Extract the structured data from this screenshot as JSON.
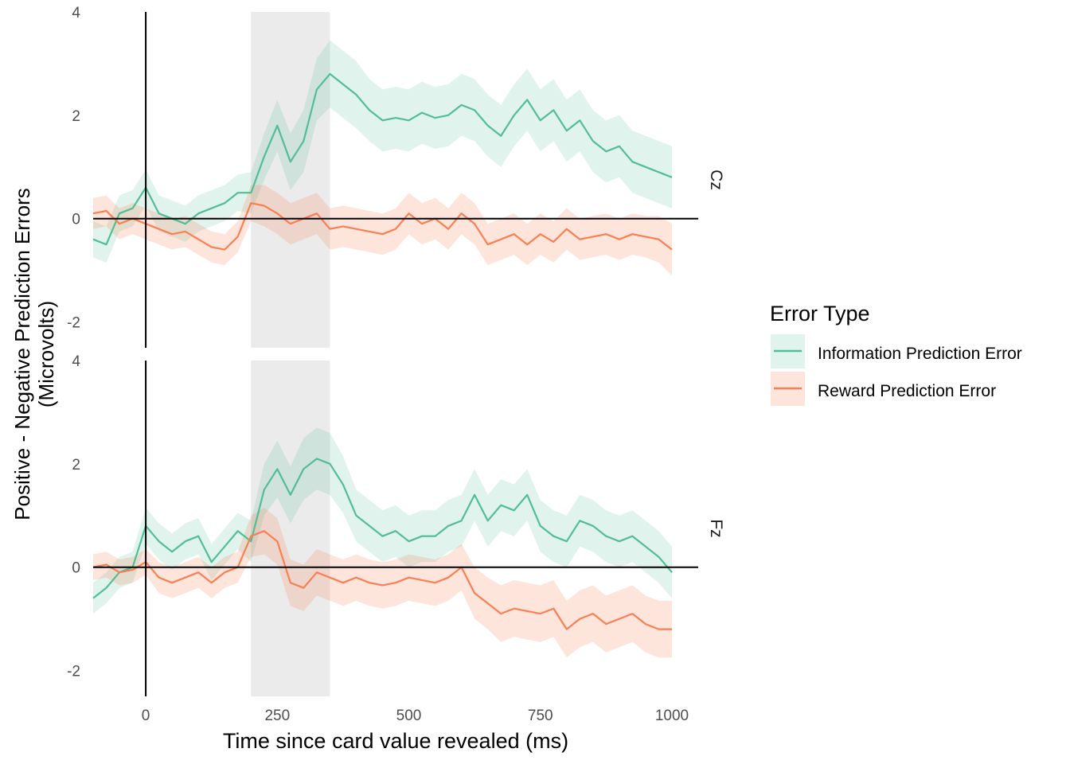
{
  "chart_data": {
    "type": "line",
    "ylabel_line1": "Positive - Negative Prediction Errors",
    "ylabel_line2": "(Microvolts)",
    "xlabel": "Time since card value revealed (ms)",
    "xlim": [
      -100,
      1050
    ],
    "ylim": [
      -2.5,
      4
    ],
    "x_ticks": [
      0,
      250,
      500,
      750,
      1000
    ],
    "y_ticks": [
      -2,
      0,
      2,
      4
    ],
    "highlight_window": [
      200,
      350
    ],
    "legend": {
      "title": "Error Type",
      "placement": "right",
      "entries": [
        {
          "name": "Information Prediction Error",
          "color": "#52bd96"
        },
        {
          "name": "Reward Prediction Error",
          "color": "#fa7f52"
        }
      ]
    },
    "panels": [
      {
        "strip_label": "Cz",
        "series": [
          {
            "name": "Information Prediction Error",
            "color": "#52bd96",
            "x": [
              -100,
              -75,
              -50,
              -25,
              0,
              25,
              50,
              75,
              100,
              125,
              150,
              175,
              200,
              225,
              250,
              275,
              300,
              325,
              350,
              375,
              400,
              425,
              450,
              475,
              500,
              525,
              550,
              575,
              600,
              625,
              650,
              675,
              700,
              725,
              750,
              775,
              800,
              825,
              850,
              875,
              900,
              925,
              950,
              975,
              1000
            ],
            "y": [
              -0.4,
              -0.5,
              0.1,
              0.2,
              0.6,
              0.1,
              0.0,
              -0.1,
              0.1,
              0.2,
              0.3,
              0.5,
              0.5,
              1.2,
              1.8,
              1.1,
              1.5,
              2.5,
              2.8,
              2.6,
              2.4,
              2.1,
              1.9,
              1.95,
              1.9,
              2.05,
              1.95,
              2.0,
              2.2,
              2.1,
              1.8,
              1.6,
              2.0,
              2.3,
              1.9,
              2.1,
              1.7,
              1.9,
              1.5,
              1.3,
              1.4,
              1.1,
              1.0,
              0.9,
              0.8
            ],
            "ci": [
              0.35,
              0.35,
              0.35,
              0.35,
              0.35,
              0.35,
              0.35,
              0.35,
              0.35,
              0.35,
              0.35,
              0.35,
              0.4,
              0.45,
              0.5,
              0.55,
              0.6,
              0.6,
              0.65,
              0.65,
              0.65,
              0.6,
              0.6,
              0.6,
              0.6,
              0.6,
              0.6,
              0.6,
              0.6,
              0.6,
              0.6,
              0.6,
              0.6,
              0.6,
              0.6,
              0.6,
              0.6,
              0.6,
              0.6,
              0.6,
              0.6,
              0.6,
              0.6,
              0.6,
              0.6
            ]
          },
          {
            "name": "Reward Prediction Error",
            "color": "#fa7f52",
            "x": [
              -100,
              -75,
              -50,
              -25,
              0,
              25,
              50,
              75,
              100,
              125,
              150,
              175,
              200,
              225,
              250,
              275,
              300,
              325,
              350,
              375,
              400,
              425,
              450,
              475,
              500,
              525,
              550,
              575,
              600,
              625,
              650,
              675,
              700,
              725,
              750,
              775,
              800,
              825,
              850,
              875,
              900,
              925,
              950,
              975,
              1000
            ],
            "y": [
              0.1,
              0.15,
              -0.1,
              0.0,
              -0.1,
              -0.2,
              -0.3,
              -0.25,
              -0.4,
              -0.55,
              -0.6,
              -0.35,
              0.3,
              0.25,
              0.1,
              -0.1,
              0.0,
              0.1,
              -0.2,
              -0.15,
              -0.2,
              -0.25,
              -0.3,
              -0.2,
              0.1,
              -0.1,
              0.0,
              -0.2,
              0.1,
              -0.1,
              -0.5,
              -0.4,
              -0.3,
              -0.5,
              -0.3,
              -0.45,
              -0.2,
              -0.4,
              -0.35,
              -0.3,
              -0.4,
              -0.3,
              -0.35,
              -0.4,
              -0.6
            ],
            "ci": [
              0.3,
              0.3,
              0.3,
              0.3,
              0.3,
              0.3,
              0.3,
              0.3,
              0.3,
              0.3,
              0.3,
              0.3,
              0.35,
              0.4,
              0.4,
              0.4,
              0.4,
              0.4,
              0.4,
              0.4,
              0.4,
              0.4,
              0.4,
              0.4,
              0.4,
              0.4,
              0.4,
              0.4,
              0.4,
              0.4,
              0.4,
              0.4,
              0.4,
              0.4,
              0.4,
              0.4,
              0.4,
              0.4,
              0.4,
              0.4,
              0.4,
              0.4,
              0.4,
              0.45,
              0.5
            ]
          }
        ]
      },
      {
        "strip_label": "Fz",
        "series": [
          {
            "name": "Information Prediction Error",
            "color": "#52bd96",
            "x": [
              -100,
              -75,
              -50,
              -25,
              0,
              25,
              50,
              75,
              100,
              125,
              150,
              175,
              200,
              225,
              250,
              275,
              300,
              325,
              350,
              375,
              400,
              425,
              450,
              475,
              500,
              525,
              550,
              575,
              600,
              625,
              650,
              675,
              700,
              725,
              750,
              775,
              800,
              825,
              850,
              875,
              900,
              925,
              950,
              975,
              1000
            ],
            "y": [
              -0.6,
              -0.4,
              -0.1,
              0.0,
              0.8,
              0.5,
              0.3,
              0.5,
              0.6,
              0.1,
              0.4,
              0.7,
              0.5,
              1.5,
              1.9,
              1.4,
              1.9,
              2.1,
              2.0,
              1.6,
              1.0,
              0.8,
              0.6,
              0.7,
              0.5,
              0.6,
              0.6,
              0.8,
              0.9,
              1.4,
              0.9,
              1.2,
              1.1,
              1.4,
              0.8,
              0.6,
              0.5,
              0.9,
              0.8,
              0.6,
              0.5,
              0.6,
              0.4,
              0.2,
              -0.1
            ],
            "ci": [
              0.3,
              0.3,
              0.3,
              0.3,
              0.35,
              0.35,
              0.35,
              0.35,
              0.35,
              0.35,
              0.35,
              0.35,
              0.4,
              0.5,
              0.55,
              0.55,
              0.6,
              0.6,
              0.6,
              0.55,
              0.5,
              0.5,
              0.5,
              0.5,
              0.5,
              0.5,
              0.5,
              0.5,
              0.5,
              0.5,
              0.5,
              0.5,
              0.5,
              0.5,
              0.5,
              0.5,
              0.5,
              0.5,
              0.5,
              0.5,
              0.5,
              0.5,
              0.5,
              0.5,
              0.5
            ]
          },
          {
            "name": "Reward Prediction Error",
            "color": "#fa7f52",
            "x": [
              -100,
              -75,
              -50,
              -25,
              0,
              25,
              50,
              75,
              100,
              125,
              150,
              175,
              200,
              225,
              250,
              275,
              300,
              325,
              350,
              375,
              400,
              425,
              450,
              475,
              500,
              525,
              550,
              575,
              600,
              625,
              650,
              675,
              700,
              725,
              750,
              775,
              800,
              825,
              850,
              875,
              900,
              925,
              950,
              975,
              1000
            ],
            "y": [
              0.0,
              0.05,
              -0.1,
              -0.05,
              0.1,
              -0.2,
              -0.3,
              -0.2,
              -0.1,
              -0.3,
              -0.1,
              0.0,
              0.6,
              0.7,
              0.5,
              -0.3,
              -0.4,
              -0.1,
              -0.2,
              -0.3,
              -0.2,
              -0.3,
              -0.35,
              -0.3,
              -0.2,
              -0.25,
              -0.3,
              -0.2,
              0.0,
              -0.5,
              -0.7,
              -0.9,
              -0.8,
              -0.85,
              -0.9,
              -0.8,
              -1.2,
              -1.0,
              -0.9,
              -1.1,
              -1.0,
              -0.9,
              -1.1,
              -1.2,
              -1.2
            ],
            "ci": [
              0.25,
              0.25,
              0.25,
              0.25,
              0.25,
              0.3,
              0.3,
              0.3,
              0.3,
              0.3,
              0.3,
              0.3,
              0.4,
              0.45,
              0.45,
              0.45,
              0.45,
              0.45,
              0.45,
              0.45,
              0.45,
              0.45,
              0.45,
              0.45,
              0.45,
              0.45,
              0.45,
              0.45,
              0.45,
              0.5,
              0.5,
              0.55,
              0.55,
              0.55,
              0.55,
              0.55,
              0.55,
              0.55,
              0.55,
              0.55,
              0.55,
              0.55,
              0.55,
              0.55,
              0.55
            ]
          }
        ]
      }
    ]
  }
}
